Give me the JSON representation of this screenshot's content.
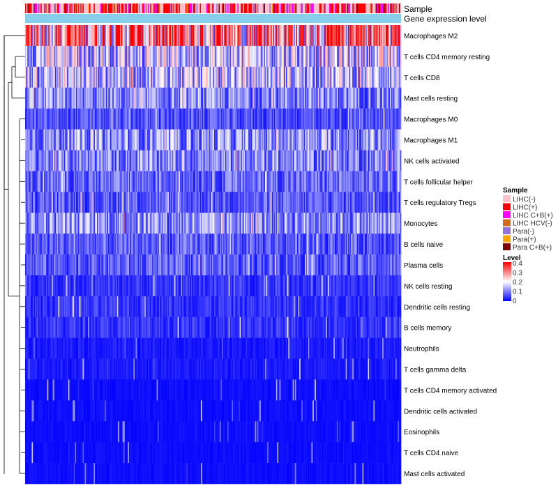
{
  "chart_data": {
    "type": "heatmap",
    "annotation_labels": [
      "Sample",
      "Gene expression level"
    ],
    "row_labels": [
      "Macrophages M2",
      "T cells CD4 memory resting",
      "T cells CD8",
      "Mast cells resting",
      "Macrophages M0",
      "Macrophages M1",
      "NK cells activated",
      "T cells follicular helper",
      "T cells regulatory  Tregs",
      "Monocytes",
      "B cells naive",
      "Plasma cells",
      "NK cells resting",
      "Dendritic cells resting",
      "B cells memory",
      "Neutrophils",
      "T cells gamma delta",
      "T cells CD4 memory activated",
      "Dendritic cells activated",
      "Eosinophils",
      "T cells CD4 naive",
      "Mast cells activated"
    ],
    "row_mean_level": [
      0.3,
      0.16,
      0.15,
      0.1,
      0.06,
      0.11,
      0.1,
      0.08,
      0.07,
      0.11,
      0.07,
      0.07,
      0.04,
      0.04,
      0.04,
      0.02,
      0.02,
      0.01,
      0.01,
      0.01,
      0.01,
      0.01
    ],
    "n_samples": 340,
    "sample_legend": {
      "title": "Sample",
      "items": [
        {
          "label": "LIHC(-)",
          "color": "#FFC0CB"
        },
        {
          "label": "LIHC(+)",
          "color": "#FF0000"
        },
        {
          "label": "LIHC C+B(+)",
          "color": "#FF00FF"
        },
        {
          "label": "LIHC HCV(-)",
          "color": "#D2691E"
        },
        {
          "label": "Para(-)",
          "color": "#9370DB"
        },
        {
          "label": "Para(+)",
          "color": "#FFA500"
        },
        {
          "label": "Para C+B(+)",
          "color": "#800000"
        }
      ]
    },
    "level_legend": {
      "title": "Level",
      "ticks": [
        "0.4",
        "0.3",
        "0.2",
        "0.1",
        "0"
      ],
      "range": [
        0,
        0.4
      ],
      "colors": [
        "#0000FF",
        "#FFFFFF",
        "#FF0000"
      ]
    },
    "gene_expression_color": "#87CEEB",
    "dendrogram_side": "left"
  }
}
